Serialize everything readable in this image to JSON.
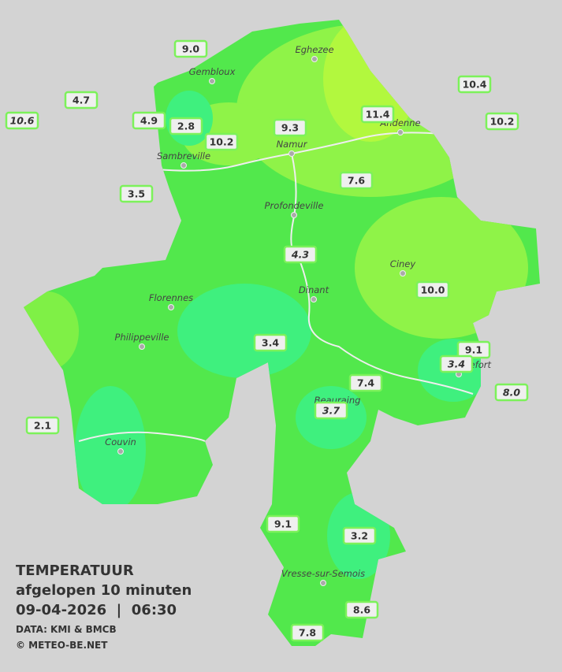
{
  "header": {
    "title": "TEMPERATUUR",
    "subtitle": "afgelopen 10 minuten",
    "datetime": "09-04-2026  |  06:30",
    "source": "DATA: KMI & BMCB",
    "copyright": "© METEO-BE.NET"
  },
  "cities": [
    "Eghezee",
    "Gembloux",
    "Andenne",
    "Namur",
    "Sambreville",
    "Profondeville",
    "Ciney",
    "Dinant",
    "Florennes",
    "Philippeville",
    "Rochefort",
    "Beauraing",
    "Couvin",
    "Vresse-sur-Semois"
  ],
  "stations": [
    "9.0",
    "4.7",
    "10.6",
    "4.9",
    "2.8",
    "10.2",
    "9.3",
    "11.4",
    "10.4",
    "10.2",
    "3.5",
    "7.6",
    "4.3",
    "10.0",
    "3.4",
    "9.1",
    "3.4",
    "7.4",
    "8.0",
    "3.7",
    "2.1",
    "9.1",
    "3.2",
    "8.6",
    "7.8"
  ]
}
